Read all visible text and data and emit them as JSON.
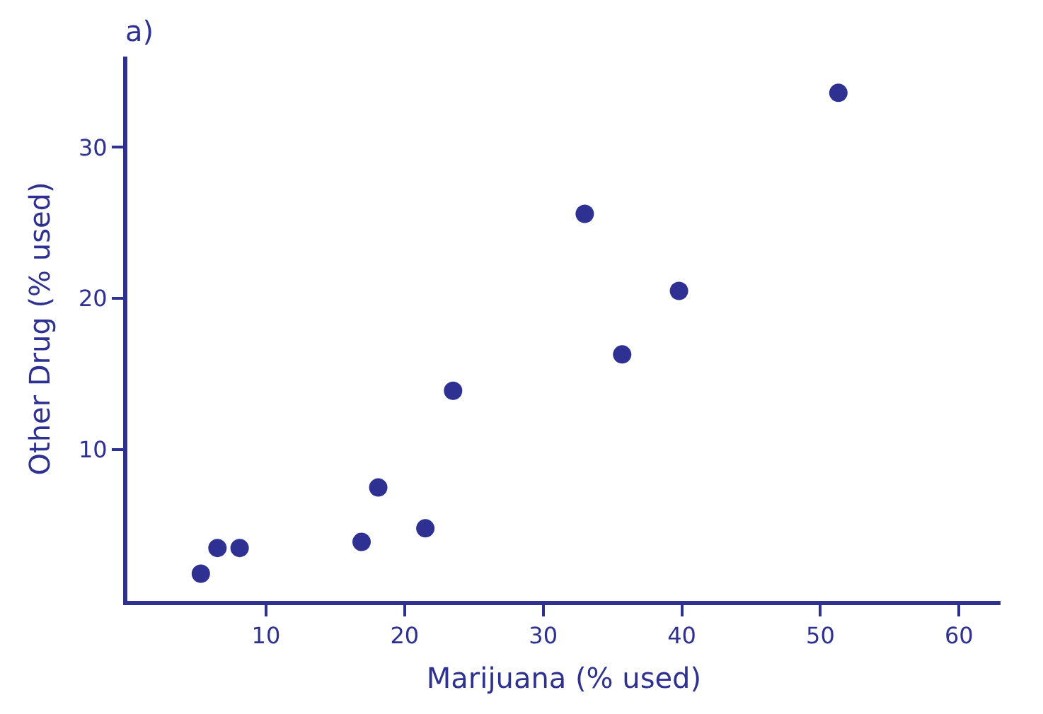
{
  "chart_data": {
    "type": "scatter",
    "title": "a)",
    "xlabel": "Marijuana (% used)",
    "ylabel": "Other Drug (% used)",
    "x": [
      5.3,
      6.5,
      8.1,
      16.9,
      18.1,
      21.5,
      23.5,
      33.0,
      35.7,
      39.8,
      51.3
    ],
    "series": [
      {
        "color": "#2e3192",
        "values": [
          1.8,
          3.5,
          3.5,
          3.9,
          7.5,
          4.8,
          13.9,
          25.6,
          16.3,
          20.5,
          33.6
        ]
      }
    ],
    "xlim": [
      0,
      63
    ],
    "ylim": [
      0,
      36
    ],
    "xticks": [
      10,
      20,
      30,
      40,
      50,
      60
    ],
    "yticks": [
      10,
      20,
      30
    ],
    "marker": "circle"
  }
}
